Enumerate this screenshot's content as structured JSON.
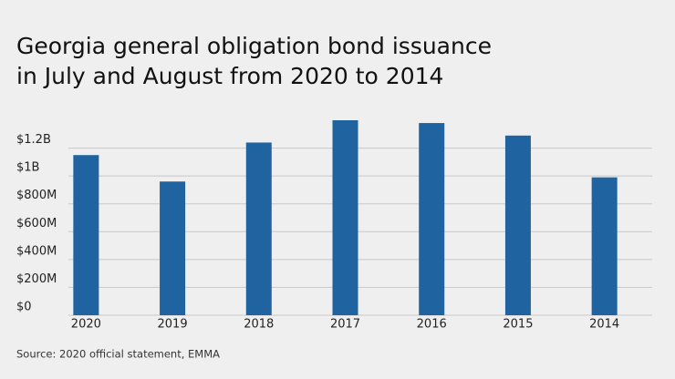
{
  "chart_data": {
    "type": "bar",
    "title": [
      "Georgia general obligation bond issuance",
      "in July and August from 2020 to 2014"
    ],
    "categories": [
      "2020",
      "2019",
      "2018",
      "2017",
      "2016",
      "2015",
      "2014"
    ],
    "values": [
      1150000000,
      960000000,
      1240000000,
      1400000000,
      1380000000,
      1290000000,
      990000000
    ],
    "color": "#1f64a0",
    "ylim": [
      0,
      1400000000
    ],
    "yticks": [
      {
        "value": 0,
        "label": "$0"
      },
      {
        "value": 200000000,
        "label": "$200M"
      },
      {
        "value": 400000000,
        "label": "$400M"
      },
      {
        "value": 600000000,
        "label": "$600M"
      },
      {
        "value": 800000000,
        "label": "$800M"
      },
      {
        "value": 1000000000,
        "label": "$1B"
      },
      {
        "value": 1200000000,
        "label": "$1.2B"
      }
    ],
    "grid": true,
    "source": "Source: 2020 official statement, EMMA"
  }
}
